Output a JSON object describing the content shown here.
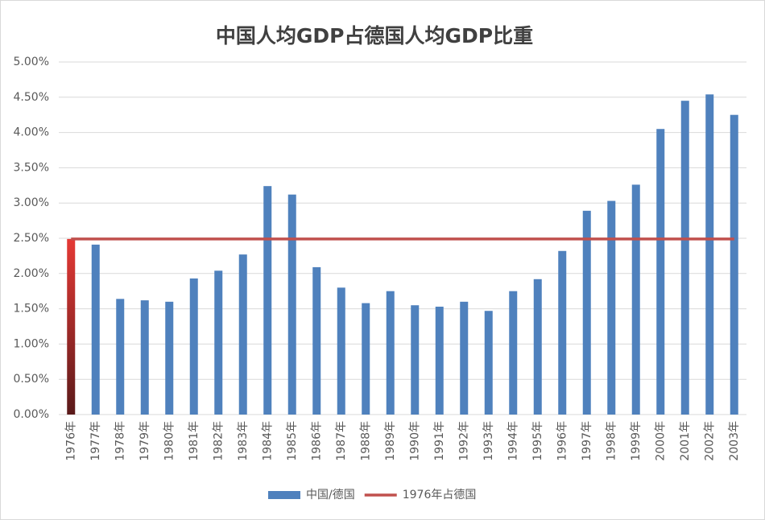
{
  "chart_data": {
    "type": "bar",
    "title": "中国人均GDP占德国人均GDP比重",
    "categories": [
      "1976年",
      "1977年",
      "1978年",
      "1979年",
      "1980年",
      "1981年",
      "1982年",
      "1983年",
      "1984年",
      "1985年",
      "1986年",
      "1987年",
      "1988年",
      "1989年",
      "1990年",
      "1991年",
      "1992年",
      "1993年",
      "1994年",
      "1995年",
      "1996年",
      "1997年",
      "1998年",
      "1999年",
      "2000年",
      "2001年",
      "2002年",
      "2003年"
    ],
    "series": [
      {
        "name": "中国/德国",
        "type": "bar",
        "color": "#4f81bd",
        "colors": [
          "#e53935",
          "#4f81bd",
          "#4f81bd",
          "#4f81bd",
          "#4f81bd",
          "#4f81bd",
          "#4f81bd",
          "#4f81bd",
          "#4f81bd",
          "#4f81bd",
          "#4f81bd",
          "#4f81bd",
          "#4f81bd",
          "#4f81bd",
          "#4f81bd",
          "#4f81bd",
          "#4f81bd",
          "#4f81bd",
          "#4f81bd",
          "#4f81bd",
          "#4f81bd",
          "#4f81bd",
          "#4f81bd",
          "#4f81bd",
          "#4f81bd",
          "#4f81bd",
          "#4f81bd",
          "#4f81bd"
        ],
        "values": [
          2.49,
          2.41,
          1.64,
          1.62,
          1.6,
          1.93,
          2.04,
          2.27,
          3.24,
          3.12,
          2.09,
          1.8,
          1.58,
          1.75,
          1.55,
          1.53,
          1.6,
          1.47,
          1.75,
          1.92,
          2.32,
          2.89,
          3.03,
          3.26,
          4.05,
          4.45,
          4.54,
          4.25
        ]
      },
      {
        "name": "1976年占德国",
        "type": "line",
        "color": "#c0504d",
        "values": [
          2.49,
          2.49,
          2.49,
          2.49,
          2.49,
          2.49,
          2.49,
          2.49,
          2.49,
          2.49,
          2.49,
          2.49,
          2.49,
          2.49,
          2.49,
          2.49,
          2.49,
          2.49,
          2.49,
          2.49,
          2.49,
          2.49,
          2.49,
          2.49,
          2.49,
          2.49,
          2.49,
          2.49
        ]
      }
    ],
    "ylim": [
      0,
      5
    ],
    "yticks": [
      {
        "value": 0,
        "label": "0.00%"
      },
      {
        "value": 0.5,
        "label": "0.50%"
      },
      {
        "value": 1,
        "label": "1.00%"
      },
      {
        "value": 1.5,
        "label": "1.50%"
      },
      {
        "value": 2,
        "label": "2.00%"
      },
      {
        "value": 2.5,
        "label": "2.50%"
      },
      {
        "value": 3,
        "label": "3.00%"
      },
      {
        "value": 3.5,
        "label": "3.50%"
      },
      {
        "value": 4,
        "label": "4.00%"
      },
      {
        "value": 4.5,
        "label": "4.50%"
      },
      {
        "value": 5,
        "label": "5.00%"
      }
    ],
    "grid": true,
    "legend": "bottom"
  }
}
